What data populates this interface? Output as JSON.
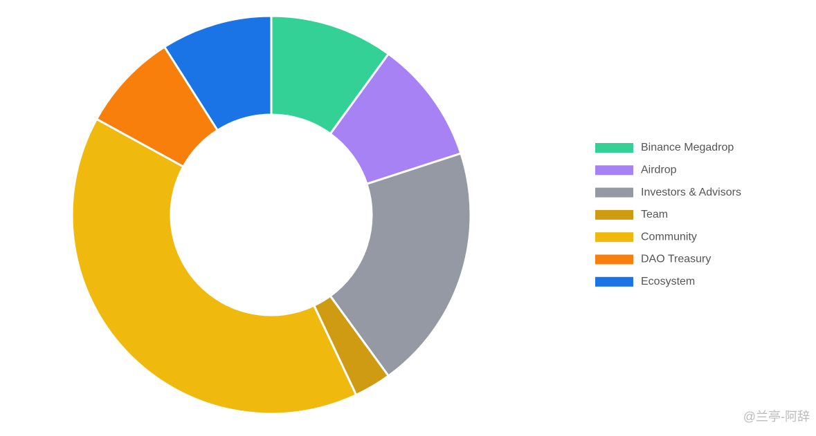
{
  "chart_data": {
    "type": "donut",
    "categories": [
      "Binance Megadrop",
      "Airdrop",
      "Investors & Advisors",
      "Team",
      "Community",
      "DAO Treasury",
      "Ecosystem"
    ],
    "values": [
      10,
      10,
      20,
      3,
      40,
      8,
      9
    ],
    "colors": [
      "#34d196",
      "#a782f5",
      "#9499a3",
      "#cf9b13",
      "#f0b90d",
      "#f97f0c",
      "#1b74e6"
    ],
    "legend": "right"
  },
  "watermark": "@兰亭-阿辞"
}
